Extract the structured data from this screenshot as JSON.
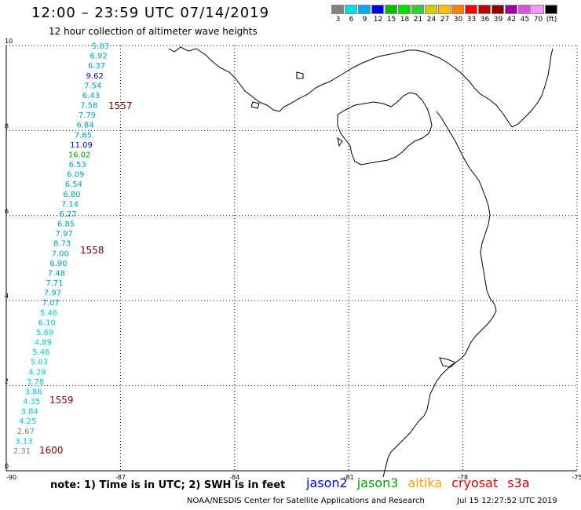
{
  "header": {
    "title": "12:00 – 23:59 UTC 07/14/2019",
    "subtitle": "12 hour collection of altimeter wave heights"
  },
  "legend": {
    "colors": [
      "#808080",
      "#00e0e0",
      "#00a8ff",
      "#0000e0",
      "#00c000",
      "#00e000",
      "#30d030",
      "#d0d000",
      "#ffc000",
      "#ff8000",
      "#ff0000",
      "#c00000",
      "#900000",
      "#a000a0",
      "#e050e0",
      "#ff90ff",
      "#000000"
    ],
    "labels": [
      "3",
      "6",
      "9",
      "12",
      "15",
      "18",
      "21",
      "24",
      "27",
      "30",
      "33",
      "36",
      "39",
      "42",
      "45",
      "70",
      "(ft)"
    ]
  },
  "map": {
    "x_ticks": [
      "-90",
      "-87",
      "-84",
      "-81",
      "-78",
      "-75"
    ],
    "y_ticks": [
      "0",
      "2",
      "4",
      "6",
      "8",
      "10"
    ],
    "x_range": [
      -90,
      -75
    ],
    "y_range": [
      0,
      10
    ],
    "coast_color": "#000000",
    "grid": true
  },
  "observations": [
    {
      "v": "5.83",
      "c": "#00c0c0"
    },
    {
      "v": "6.92",
      "c": "#00a0c0"
    },
    {
      "v": "6.37",
      "c": "#00a0c0"
    },
    {
      "v": "9.62",
      "c": "#0000c0"
    },
    {
      "v": "7.54",
      "c": "#00a0c0"
    },
    {
      "v": "6.43",
      "c": "#00a0c0"
    },
    {
      "v": "7.58",
      "c": "#00a0c0"
    },
    {
      "v": "7.79",
      "c": "#00a0c0"
    },
    {
      "v": "6.84",
      "c": "#00a0c0"
    },
    {
      "v": "7.65",
      "c": "#00a0c0"
    },
    {
      "v": "11.09",
      "c": "#0000c0"
    },
    {
      "v": "16.02",
      "c": "#00a000"
    },
    {
      "v": "6.53",
      "c": "#00a0c0"
    },
    {
      "v": "6.09",
      "c": "#00a0c0"
    },
    {
      "v": "6.54",
      "c": "#00a0c0"
    },
    {
      "v": "6.80",
      "c": "#00a0c0"
    },
    {
      "v": "7.14",
      "c": "#00a0c0"
    },
    {
      "v": "6.27",
      "c": "#00a0c0"
    },
    {
      "v": "6.85",
      "c": "#00a0c0"
    },
    {
      "v": "7.97",
      "c": "#00a0c0"
    },
    {
      "v": "8.73",
      "c": "#00a0c0"
    },
    {
      "v": "7.00",
      "c": "#00a0c0"
    },
    {
      "v": "6.90",
      "c": "#00a0c0"
    },
    {
      "v": "7.48",
      "c": "#00a0c0"
    },
    {
      "v": "7.71",
      "c": "#00a0c0"
    },
    {
      "v": "7.97",
      "c": "#00a0c0"
    },
    {
      "v": "7.07",
      "c": "#00a0c0"
    },
    {
      "v": "5.46",
      "c": "#00c8d8"
    },
    {
      "v": "6.10",
      "c": "#00c8d8"
    },
    {
      "v": "5.69",
      "c": "#00c8d8"
    },
    {
      "v": "4.89",
      "c": "#00c8d8"
    },
    {
      "v": "5.46",
      "c": "#00c8d8"
    },
    {
      "v": "5.03",
      "c": "#00c8d8"
    },
    {
      "v": "4.29",
      "c": "#00c8d8"
    },
    {
      "v": "3.78",
      "c": "#00c8d8"
    },
    {
      "v": "3.86",
      "c": "#00c8d8"
    },
    {
      "v": "4.35",
      "c": "#00c8d8"
    },
    {
      "v": "3.84",
      "c": "#00c8d8"
    },
    {
      "v": "4.25",
      "c": "#00c8d8"
    },
    {
      "v": "2.67",
      "c": "#808080"
    },
    {
      "v": "3.13",
      "c": "#00c8d8"
    },
    {
      "v": "2.31",
      "c": "#808080"
    }
  ],
  "times": [
    {
      "t": "1557",
      "c": "#800000"
    },
    {
      "t": "1558",
      "c": "#800000"
    },
    {
      "t": "1559",
      "c": "#800000"
    },
    {
      "t": "1600",
      "c": "#800000"
    }
  ],
  "footer": {
    "note": "note: 1) Time is in UTC; 2) SWH is in feet",
    "satellites": [
      {
        "name": "jason2",
        "color": "#0000d0"
      },
      {
        "name": "jason3",
        "color": "#00a000"
      },
      {
        "name": "altika",
        "color": "#ffa000"
      },
      {
        "name": "cryosat",
        "color": "#e00000"
      },
      {
        "name": "s3a",
        "color": "#c00000"
      }
    ],
    "credit": "NOAA/NESDIS Center for Satellite Applications and Research",
    "generated": "Jul 15 12:27:52 UTC 2019"
  }
}
